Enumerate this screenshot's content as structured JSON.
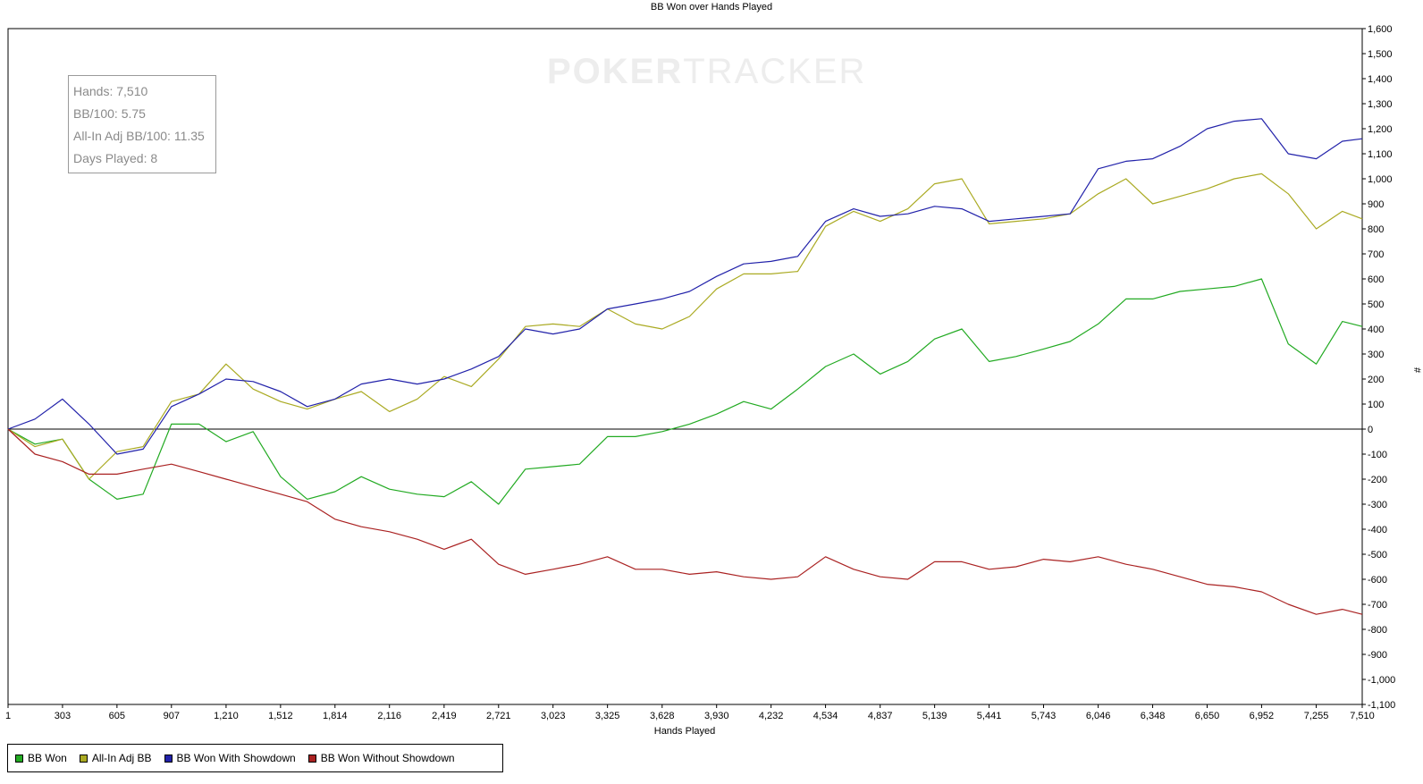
{
  "chart_data": {
    "type": "line",
    "title": "BB Won over Hands Played",
    "xlabel": "Hands Played",
    "ylabel": "#",
    "xlim": [
      1,
      7510
    ],
    "ylim": [
      -1100,
      1600
    ],
    "x_ticks": [
      "1",
      "303",
      "605",
      "907",
      "1,210",
      "1,512",
      "1,814",
      "2,116",
      "2,419",
      "2,721",
      "3,023",
      "3,325",
      "3,628",
      "3,930",
      "4,232",
      "4,534",
      "4,837",
      "5,139",
      "5,441",
      "5,743",
      "6,046",
      "6,348",
      "6,650",
      "6,952",
      "7,255",
      "7,510"
    ],
    "y_ticks": [
      "1,600",
      "1,500",
      "1,400",
      "1,300",
      "1,200",
      "1,100",
      "1,000",
      "900",
      "800",
      "700",
      "600",
      "500",
      "400",
      "300",
      "200",
      "100",
      "0",
      "-100",
      "-200",
      "-300",
      "-400",
      "-500",
      "-600",
      "-700",
      "-800",
      "-900",
      "-1,000",
      "-1,100"
    ],
    "grid": false,
    "legend_position": "bottom-left",
    "x": [
      1,
      150,
      303,
      450,
      605,
      750,
      907,
      1060,
      1210,
      1360,
      1512,
      1660,
      1814,
      1960,
      2116,
      2270,
      2419,
      2570,
      2721,
      2870,
      3023,
      3170,
      3325,
      3480,
      3628,
      3780,
      3930,
      4080,
      4232,
      4380,
      4534,
      4690,
      4837,
      4990,
      5139,
      5290,
      5441,
      5590,
      5743,
      5890,
      6046,
      6200,
      6348,
      6500,
      6650,
      6800,
      6952,
      7100,
      7255,
      7400,
      7510
    ],
    "series": [
      {
        "name": "BB Won",
        "color": "#22aa22",
        "values": [
          0,
          -60,
          -40,
          -200,
          -280,
          -260,
          20,
          20,
          -50,
          -10,
          -190,
          -280,
          -250,
          -190,
          -240,
          -260,
          -270,
          -210,
          -300,
          -160,
          -150,
          -140,
          -30,
          -30,
          -10,
          20,
          60,
          110,
          80,
          160,
          250,
          300,
          220,
          270,
          360,
          400,
          270,
          290,
          320,
          350,
          420,
          520,
          520,
          550,
          560,
          570,
          600,
          340,
          260,
          430,
          410
        ]
      },
      {
        "name": "All-In Adj BB",
        "color": "#aaaa22",
        "values": [
          0,
          -70,
          -40,
          -200,
          -90,
          -70,
          110,
          140,
          260,
          160,
          110,
          80,
          120,
          150,
          70,
          120,
          210,
          170,
          280,
          410,
          420,
          410,
          480,
          420,
          400,
          450,
          560,
          620,
          620,
          630,
          810,
          870,
          830,
          880,
          980,
          1000,
          820,
          830,
          840,
          860,
          940,
          1000,
          900,
          930,
          960,
          1000,
          1020,
          940,
          800,
          870,
          840
        ]
      },
      {
        "name": "BB Won With Showdown",
        "color": "#2222aa",
        "values": [
          0,
          40,
          120,
          20,
          -100,
          -80,
          90,
          140,
          200,
          190,
          150,
          90,
          120,
          180,
          200,
          180,
          200,
          240,
          290,
          400,
          380,
          400,
          480,
          500,
          520,
          550,
          610,
          660,
          670,
          690,
          830,
          880,
          850,
          860,
          890,
          880,
          830,
          840,
          850,
          860,
          1040,
          1070,
          1080,
          1130,
          1200,
          1230,
          1240,
          1100,
          1080,
          1150,
          1160
        ]
      },
      {
        "name": "BB Won Without Showdown",
        "color": "#aa2222",
        "values": [
          0,
          -100,
          -130,
          -180,
          -180,
          -160,
          -140,
          -170,
          -200,
          -230,
          -260,
          -290,
          -360,
          -390,
          -410,
          -440,
          -480,
          -440,
          -540,
          -580,
          -560,
          -540,
          -510,
          -560,
          -560,
          -580,
          -570,
          -590,
          -600,
          -590,
          -510,
          -560,
          -590,
          -600,
          -530,
          -530,
          -560,
          -550,
          -520,
          -530,
          -510,
          -540,
          -560,
          -590,
          -620,
          -630,
          -650,
          -700,
          -740,
          -720,
          -740
        ]
      }
    ]
  },
  "stats": {
    "hands": "Hands: 7,510",
    "bb100": "BB/100: 5.75",
    "allin_bb100": "All-In Adj BB/100: 11.35",
    "days": "Days Played: 8"
  },
  "watermark": {
    "part1": "POKER",
    "part2": "TRACKER"
  },
  "legend": [
    {
      "label": "BB Won",
      "color": "#22aa22"
    },
    {
      "label": "All-In Adj BB",
      "color": "#aaaa22"
    },
    {
      "label": "BB Won With Showdown",
      "color": "#2222aa"
    },
    {
      "label": "BB Won Without Showdown",
      "color": "#aa2222"
    }
  ]
}
